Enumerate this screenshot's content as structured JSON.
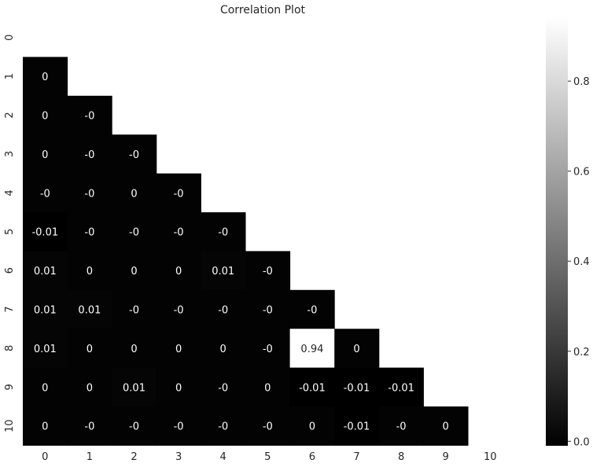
{
  "chart_data": {
    "type": "heatmap",
    "title": "Correlation Plot",
    "x_categories": [
      "0",
      "1",
      "2",
      "3",
      "4",
      "5",
      "6",
      "7",
      "8",
      "9",
      "10"
    ],
    "y_categories": [
      "0",
      "1",
      "2",
      "3",
      "4",
      "5",
      "6",
      "7",
      "8",
      "9",
      "10"
    ],
    "mask": "upper-triangle-including-diagonal",
    "colormap": "grayscale (black = low, white = high)",
    "vmin": -0.01,
    "vmax": 0.94,
    "colorbar_ticks": [
      "0.0",
      "0.2",
      "0.4",
      "0.6",
      "0.8"
    ],
    "cells": [
      {
        "row": "1",
        "col": "0",
        "value": 0,
        "label": "0"
      },
      {
        "row": "2",
        "col": "0",
        "value": 0,
        "label": "0"
      },
      {
        "row": "2",
        "col": "1",
        "value": 0,
        "label": "-0"
      },
      {
        "row": "3",
        "col": "0",
        "value": 0,
        "label": "0"
      },
      {
        "row": "3",
        "col": "1",
        "value": 0,
        "label": "-0"
      },
      {
        "row": "3",
        "col": "2",
        "value": 0,
        "label": "-0"
      },
      {
        "row": "4",
        "col": "0",
        "value": 0,
        "label": "-0"
      },
      {
        "row": "4",
        "col": "1",
        "value": 0,
        "label": "-0"
      },
      {
        "row": "4",
        "col": "2",
        "value": 0,
        "label": "0"
      },
      {
        "row": "4",
        "col": "3",
        "value": 0,
        "label": "-0"
      },
      {
        "row": "5",
        "col": "0",
        "value": -0.01,
        "label": "-0.01"
      },
      {
        "row": "5",
        "col": "1",
        "value": 0,
        "label": "-0"
      },
      {
        "row": "5",
        "col": "2",
        "value": 0,
        "label": "-0"
      },
      {
        "row": "5",
        "col": "3",
        "value": 0,
        "label": "-0"
      },
      {
        "row": "5",
        "col": "4",
        "value": 0,
        "label": "-0"
      },
      {
        "row": "6",
        "col": "0",
        "value": 0.01,
        "label": "0.01"
      },
      {
        "row": "6",
        "col": "1",
        "value": 0,
        "label": "0"
      },
      {
        "row": "6",
        "col": "2",
        "value": 0,
        "label": "0"
      },
      {
        "row": "6",
        "col": "3",
        "value": 0,
        "label": "0"
      },
      {
        "row": "6",
        "col": "4",
        "value": 0.01,
        "label": "0.01"
      },
      {
        "row": "6",
        "col": "5",
        "value": 0,
        "label": "-0"
      },
      {
        "row": "7",
        "col": "0",
        "value": 0.01,
        "label": "0.01"
      },
      {
        "row": "7",
        "col": "1",
        "value": 0.01,
        "label": "0.01"
      },
      {
        "row": "7",
        "col": "2",
        "value": 0,
        "label": "-0"
      },
      {
        "row": "7",
        "col": "3",
        "value": 0,
        "label": "-0"
      },
      {
        "row": "7",
        "col": "4",
        "value": 0,
        "label": "-0"
      },
      {
        "row": "7",
        "col": "5",
        "value": 0,
        "label": "-0"
      },
      {
        "row": "7",
        "col": "6",
        "value": 0,
        "label": "-0"
      },
      {
        "row": "8",
        "col": "0",
        "value": 0.01,
        "label": "0.01"
      },
      {
        "row": "8",
        "col": "1",
        "value": 0,
        "label": "0"
      },
      {
        "row": "8",
        "col": "2",
        "value": 0,
        "label": "0"
      },
      {
        "row": "8",
        "col": "3",
        "value": 0,
        "label": "0"
      },
      {
        "row": "8",
        "col": "4",
        "value": 0,
        "label": "0"
      },
      {
        "row": "8",
        "col": "5",
        "value": 0,
        "label": "-0"
      },
      {
        "row": "8",
        "col": "6",
        "value": 0.94,
        "label": "0.94"
      },
      {
        "row": "8",
        "col": "7",
        "value": 0,
        "label": "0"
      },
      {
        "row": "9",
        "col": "0",
        "value": 0,
        "label": "0"
      },
      {
        "row": "9",
        "col": "1",
        "value": 0,
        "label": "0"
      },
      {
        "row": "9",
        "col": "2",
        "value": 0.01,
        "label": "0.01"
      },
      {
        "row": "9",
        "col": "3",
        "value": 0,
        "label": "0"
      },
      {
        "row": "9",
        "col": "4",
        "value": 0,
        "label": "-0"
      },
      {
        "row": "9",
        "col": "5",
        "value": 0,
        "label": "0"
      },
      {
        "row": "9",
        "col": "6",
        "value": -0.01,
        "label": "-0.01"
      },
      {
        "row": "9",
        "col": "7",
        "value": -0.01,
        "label": "-0.01"
      },
      {
        "row": "9",
        "col": "8",
        "value": -0.01,
        "label": "-0.01"
      },
      {
        "row": "10",
        "col": "0",
        "value": 0,
        "label": "0"
      },
      {
        "row": "10",
        "col": "1",
        "value": 0,
        "label": "-0"
      },
      {
        "row": "10",
        "col": "2",
        "value": 0,
        "label": "-0"
      },
      {
        "row": "10",
        "col": "3",
        "value": 0,
        "label": "-0"
      },
      {
        "row": "10",
        "col": "4",
        "value": 0,
        "label": "-0"
      },
      {
        "row": "10",
        "col": "5",
        "value": 0,
        "label": "-0"
      },
      {
        "row": "10",
        "col": "6",
        "value": 0,
        "label": "0"
      },
      {
        "row": "10",
        "col": "7",
        "value": -0.01,
        "label": "-0.01"
      },
      {
        "row": "10",
        "col": "8",
        "value": 0,
        "label": "-0"
      },
      {
        "row": "10",
        "col": "9",
        "value": 0,
        "label": "0"
      }
    ]
  },
  "colors": {
    "background": "#ffffff",
    "text": "#262626"
  }
}
